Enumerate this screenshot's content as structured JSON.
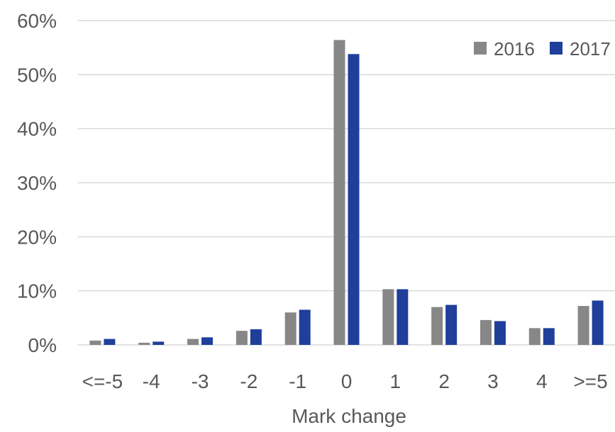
{
  "chart_data": {
    "type": "bar",
    "title": "",
    "xlabel": "Mark change",
    "ylabel": "",
    "categories": [
      "<=-5",
      "-4",
      "-3",
      "-2",
      "-1",
      "0",
      "1",
      "2",
      "3",
      "4",
      ">=5"
    ],
    "series": [
      {
        "name": "2016",
        "color": "#878787",
        "values": [
          0.8,
          0.4,
          1.1,
          2.6,
          6.0,
          56.4,
          10.3,
          7.0,
          4.6,
          3.1,
          7.2
        ]
      },
      {
        "name": "2017",
        "color": "#1f3f9b",
        "values": [
          1.1,
          0.6,
          1.4,
          2.9,
          6.5,
          53.8,
          10.3,
          7.4,
          4.4,
          3.1,
          8.2
        ]
      }
    ],
    "ylim": [
      0,
      60
    ],
    "yticks": [
      0,
      10,
      20,
      30,
      40,
      50,
      60
    ],
    "ytick_labels": [
      "0%",
      "10%",
      "20%",
      "30%",
      "40%",
      "50%",
      "60%"
    ],
    "grid": true,
    "legend_position": "top-right"
  }
}
